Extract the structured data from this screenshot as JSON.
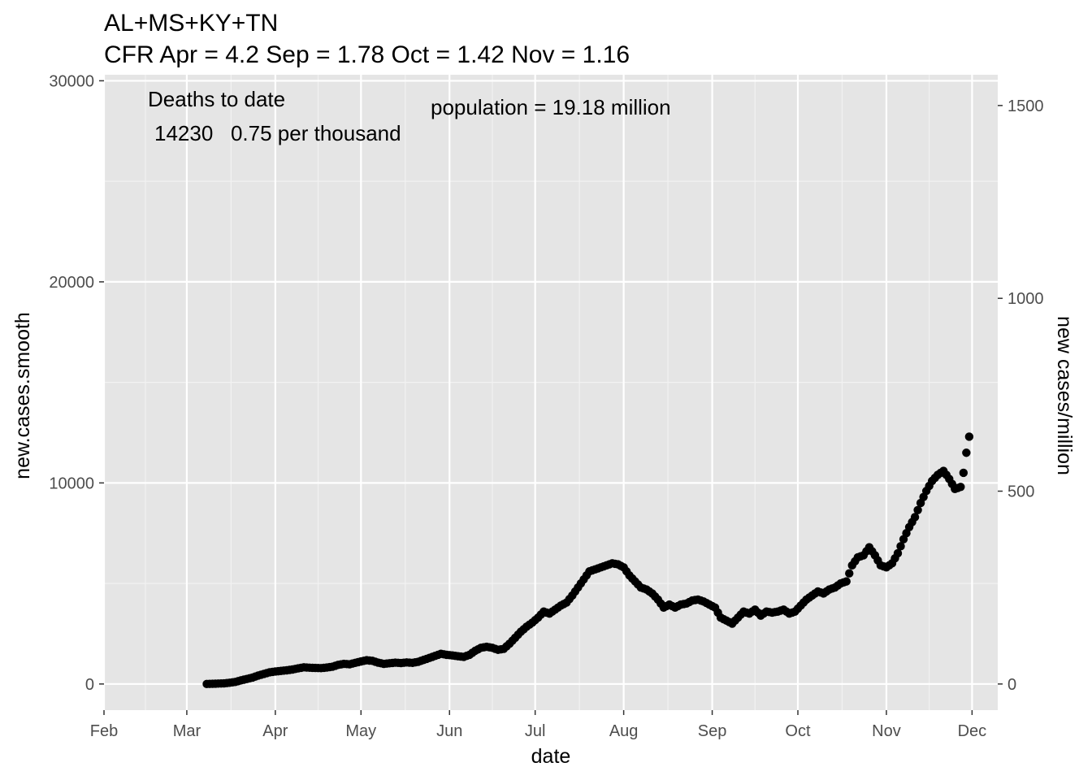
{
  "chart_data": {
    "type": "scatter",
    "title": "AL+MS+KY+TN",
    "subtitle": "CFR Apr = 4.2  Sep = 1.78  Oct = 1.42  Nov = 1.16",
    "xlabel": "date",
    "ylabel": "new.cases.smooth",
    "y2label": "new cases/million",
    "xlim": [
      "2020-02-01",
      "2020-12-10"
    ],
    "ylim": [
      -1300,
      30300
    ],
    "y_ticks": [
      0,
      10000,
      20000,
      30000
    ],
    "y2_ticks": [
      0,
      500,
      1000,
      1500
    ],
    "y2_scale": 19.18,
    "x_ticks": [
      {
        "date": "2020-02-01",
        "label": "Feb"
      },
      {
        "date": "2020-03-01",
        "label": "Mar"
      },
      {
        "date": "2020-04-01",
        "label": "Apr"
      },
      {
        "date": "2020-05-01",
        "label": "May"
      },
      {
        "date": "2020-06-01",
        "label": "Jun"
      },
      {
        "date": "2020-07-01",
        "label": "Jul"
      },
      {
        "date": "2020-08-01",
        "label": "Aug"
      },
      {
        "date": "2020-09-01",
        "label": "Sep"
      },
      {
        "date": "2020-10-01",
        "label": "Oct"
      },
      {
        "date": "2020-11-01",
        "label": "Nov"
      },
      {
        "date": "2020-12-01",
        "label": "Dec"
      }
    ],
    "grid": true,
    "annotations": {
      "deaths_title": "Deaths to date",
      "deaths_value": "14230   0.75 per thousand",
      "population": "population = 19.18 million"
    },
    "points_color": "#000000",
    "panel_color": "#e5e5e5",
    "points": [
      [
        "2020-03-08",
        0
      ],
      [
        "2020-03-10",
        10
      ],
      [
        "2020-03-12",
        20
      ],
      [
        "2020-03-14",
        30
      ],
      [
        "2020-03-16",
        60
      ],
      [
        "2020-03-18",
        100
      ],
      [
        "2020-03-20",
        180
      ],
      [
        "2020-03-22",
        250
      ],
      [
        "2020-03-24",
        320
      ],
      [
        "2020-03-26",
        420
      ],
      [
        "2020-03-28",
        500
      ],
      [
        "2020-03-30",
        580
      ],
      [
        "2020-04-01",
        620
      ],
      [
        "2020-04-03",
        650
      ],
      [
        "2020-04-05",
        680
      ],
      [
        "2020-04-07",
        720
      ],
      [
        "2020-04-09",
        780
      ],
      [
        "2020-04-11",
        830
      ],
      [
        "2020-04-13",
        810
      ],
      [
        "2020-04-15",
        800
      ],
      [
        "2020-04-17",
        790
      ],
      [
        "2020-04-19",
        820
      ],
      [
        "2020-04-21",
        860
      ],
      [
        "2020-04-23",
        950
      ],
      [
        "2020-04-25",
        1000
      ],
      [
        "2020-04-27",
        980
      ],
      [
        "2020-04-29",
        1050
      ],
      [
        "2020-05-01",
        1120
      ],
      [
        "2020-05-03",
        1180
      ],
      [
        "2020-05-05",
        1150
      ],
      [
        "2020-05-07",
        1060
      ],
      [
        "2020-05-09",
        1000
      ],
      [
        "2020-05-11",
        1030
      ],
      [
        "2020-05-13",
        1060
      ],
      [
        "2020-05-15",
        1040
      ],
      [
        "2020-05-17",
        1070
      ],
      [
        "2020-05-19",
        1050
      ],
      [
        "2020-05-21",
        1100
      ],
      [
        "2020-05-23",
        1200
      ],
      [
        "2020-05-25",
        1300
      ],
      [
        "2020-05-27",
        1400
      ],
      [
        "2020-05-29",
        1500
      ],
      [
        "2020-05-31",
        1450
      ],
      [
        "2020-06-02",
        1420
      ],
      [
        "2020-06-04",
        1380
      ],
      [
        "2020-06-06",
        1350
      ],
      [
        "2020-06-08",
        1450
      ],
      [
        "2020-06-10",
        1650
      ],
      [
        "2020-06-12",
        1800
      ],
      [
        "2020-06-14",
        1850
      ],
      [
        "2020-06-16",
        1800
      ],
      [
        "2020-06-18",
        1700
      ],
      [
        "2020-06-20",
        1750
      ],
      [
        "2020-06-22",
        2000
      ],
      [
        "2020-06-24",
        2300
      ],
      [
        "2020-06-26",
        2600
      ],
      [
        "2020-06-28",
        2850
      ],
      [
        "2020-06-30",
        3050
      ],
      [
        "2020-07-02",
        3300
      ],
      [
        "2020-07-04",
        3600
      ],
      [
        "2020-07-06",
        3500
      ],
      [
        "2020-07-08",
        3700
      ],
      [
        "2020-07-10",
        3900
      ],
      [
        "2020-07-12",
        4050
      ],
      [
        "2020-07-14",
        4400
      ],
      [
        "2020-07-16",
        4800
      ],
      [
        "2020-07-18",
        5200
      ],
      [
        "2020-07-20",
        5600
      ],
      [
        "2020-07-22",
        5700
      ],
      [
        "2020-07-24",
        5800
      ],
      [
        "2020-07-26",
        5900
      ],
      [
        "2020-07-28",
        6000
      ],
      [
        "2020-07-30",
        5950
      ],
      [
        "2020-08-01",
        5800
      ],
      [
        "2020-08-03",
        5400
      ],
      [
        "2020-08-05",
        5100
      ],
      [
        "2020-08-07",
        4800
      ],
      [
        "2020-08-09",
        4700
      ],
      [
        "2020-08-11",
        4500
      ],
      [
        "2020-08-13",
        4200
      ],
      [
        "2020-08-15",
        3800
      ],
      [
        "2020-08-17",
        3950
      ],
      [
        "2020-08-19",
        3800
      ],
      [
        "2020-08-21",
        3950
      ],
      [
        "2020-08-23",
        4000
      ],
      [
        "2020-08-25",
        4150
      ],
      [
        "2020-08-27",
        4200
      ],
      [
        "2020-08-29",
        4100
      ],
      [
        "2020-08-31",
        3950
      ],
      [
        "2020-09-02",
        3800
      ],
      [
        "2020-09-04",
        3300
      ],
      [
        "2020-09-06",
        3150
      ],
      [
        "2020-09-08",
        3000
      ],
      [
        "2020-09-10",
        3300
      ],
      [
        "2020-09-12",
        3600
      ],
      [
        "2020-09-14",
        3500
      ],
      [
        "2020-09-16",
        3700
      ],
      [
        "2020-09-18",
        3400
      ],
      [
        "2020-09-20",
        3600
      ],
      [
        "2020-09-22",
        3550
      ],
      [
        "2020-09-24",
        3600
      ],
      [
        "2020-09-26",
        3700
      ],
      [
        "2020-09-28",
        3500
      ],
      [
        "2020-09-30",
        3600
      ],
      [
        "2020-10-02",
        3900
      ],
      [
        "2020-10-04",
        4200
      ],
      [
        "2020-10-06",
        4400
      ],
      [
        "2020-10-08",
        4600
      ],
      [
        "2020-10-10",
        4500
      ],
      [
        "2020-10-12",
        4700
      ],
      [
        "2020-10-14",
        4800
      ],
      [
        "2020-10-16",
        5000
      ],
      [
        "2020-10-18",
        5100
      ],
      [
        "2020-10-20",
        5900
      ],
      [
        "2020-10-22",
        6300
      ],
      [
        "2020-10-24",
        6400
      ],
      [
        "2020-10-26",
        6800
      ],
      [
        "2020-10-28",
        6400
      ],
      [
        "2020-10-30",
        5900
      ],
      [
        "2020-11-01",
        5800
      ],
      [
        "2020-11-03",
        6000
      ],
      [
        "2020-11-05",
        6500
      ],
      [
        "2020-11-07",
        7200
      ],
      [
        "2020-11-09",
        7800
      ],
      [
        "2020-11-11",
        8300
      ],
      [
        "2020-11-13",
        9000
      ],
      [
        "2020-11-15",
        9600
      ],
      [
        "2020-11-17",
        10100
      ],
      [
        "2020-11-19",
        10400
      ],
      [
        "2020-11-21",
        10600
      ],
      [
        "2020-11-23",
        10200
      ],
      [
        "2020-11-25",
        9700
      ],
      [
        "2020-11-27",
        9800
      ],
      [
        "2020-11-28",
        10500
      ],
      [
        "2020-11-29",
        11500
      ],
      [
        "2020-11-30",
        12300
      ]
    ]
  }
}
